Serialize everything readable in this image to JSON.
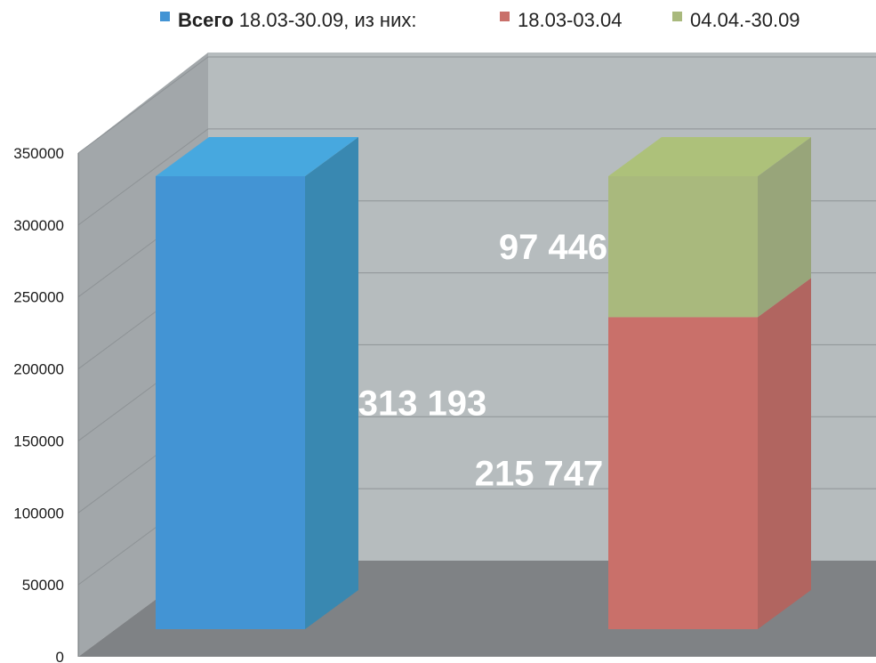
{
  "chart_data": {
    "type": "bar",
    "stacked_3d": true,
    "legend": {
      "placement": "top",
      "items": [
        {
          "key": "total",
          "prefix": "Всего",
          "label": " 18.03-30.09,  из них:",
          "color": "#4394d4"
        },
        {
          "key": "p1",
          "label": "18.03-03.04",
          "color": "#c9706a"
        },
        {
          "key": "p2",
          "label": "04.04.-30.09",
          "color": "#a9b97d"
        }
      ]
    },
    "ylim": [
      0,
      350000
    ],
    "yticks": [
      0,
      50000,
      100000,
      150000,
      200000,
      250000,
      300000,
      350000
    ],
    "ytick_labels": [
      "0",
      "50000",
      "100000",
      "150000",
      "200000",
      "250000",
      "300000",
      "350000"
    ],
    "grid": true,
    "bars": [
      {
        "segments": [
          {
            "series": "total",
            "value": 313193,
            "label": "313 193"
          }
        ]
      },
      {
        "segments": [
          {
            "series": "p1",
            "value": 215747,
            "label": "215 747"
          },
          {
            "series": "p2",
            "value": 97446,
            "label": "97 446"
          }
        ]
      }
    ]
  },
  "colors": {
    "back_wall": "#b6bcbe",
    "side_wall": "#a2a7aa",
    "floor": "#7f8285",
    "grid": "#8e9396",
    "total_front": "#4394d4",
    "total_side": "#3988b1",
    "total_top": "#47a8df",
    "p1_front": "#c9706a",
    "p1_side": "#b16560",
    "p1_top": "#cc7269",
    "p2_front": "#a9b97d",
    "p2_side": "#98a57a",
    "p2_top": "#adc17a"
  }
}
